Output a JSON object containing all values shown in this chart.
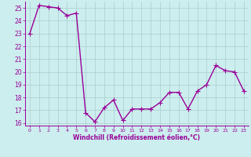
{
  "x": [
    0,
    1,
    2,
    3,
    4,
    5,
    6,
    7,
    8,
    9,
    10,
    11,
    12,
    13,
    14,
    15,
    16,
    17,
    18,
    19,
    20,
    21,
    22,
    23
  ],
  "y": [
    23.0,
    25.2,
    25.1,
    25.0,
    24.4,
    24.6,
    16.8,
    16.1,
    17.2,
    17.8,
    16.2,
    17.1,
    17.1,
    17.1,
    17.6,
    18.4,
    18.4,
    17.1,
    18.5,
    19.0,
    20.5,
    20.1,
    20.0,
    18.5
  ],
  "xlim": [
    -0.5,
    23.5
  ],
  "ylim": [
    15.8,
    25.5
  ],
  "yticks": [
    16,
    17,
    18,
    19,
    20,
    21,
    22,
    23,
    24,
    25
  ],
  "xticks": [
    0,
    1,
    2,
    3,
    4,
    5,
    6,
    7,
    8,
    9,
    10,
    11,
    12,
    13,
    14,
    15,
    16,
    17,
    18,
    19,
    20,
    21,
    22,
    23
  ],
  "xlabel": "Windchill (Refroidissement éolien,°C)",
  "line_color": "#990099",
  "marker": "+",
  "bg_color": "#cceeee",
  "grid_color": "#aacccc",
  "tick_label_color": "#990099",
  "label_color": "#990099",
  "figsize": [
    3.2,
    2.0
  ],
  "dpi": 100,
  "line_width": 1.0,
  "marker_size": 4
}
